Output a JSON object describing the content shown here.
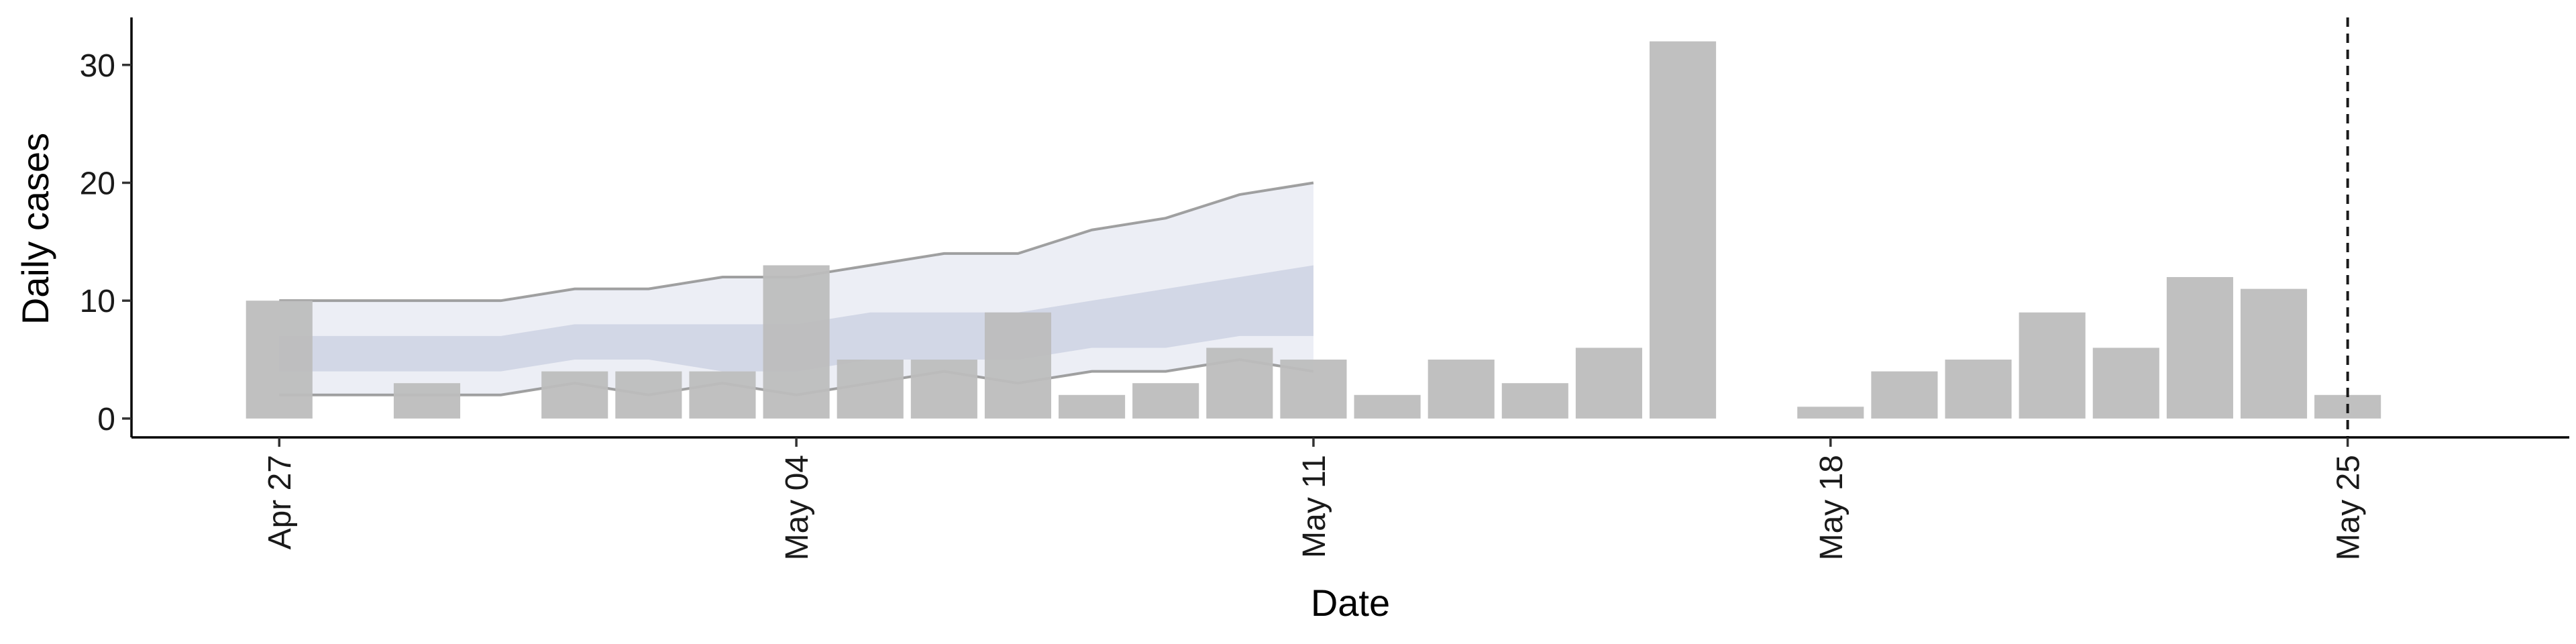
{
  "chart_data": {
    "type": "bar",
    "xlabel": "Date",
    "ylabel": "Daily cases",
    "xlim": [
      "2020-04-25",
      "2020-05-28"
    ],
    "ylim": [
      -1.6,
      33.8
    ],
    "x_ticks": [
      {
        "date": "2020-04-27",
        "label": "Apr 27"
      },
      {
        "date": "2020-05-04",
        "label": "May 04"
      },
      {
        "date": "2020-05-11",
        "label": "May 11"
      },
      {
        "date": "2020-05-18",
        "label": "May 18"
      },
      {
        "date": "2020-05-25",
        "label": "May 25"
      }
    ],
    "y_ticks": [
      0,
      10,
      20,
      30
    ],
    "grid": false,
    "daily_cases": {
      "color": "#bdbdbd",
      "points": [
        {
          "date": "2020-04-27",
          "value": 10
        },
        {
          "date": "2020-04-29",
          "value": 3
        },
        {
          "date": "2020-05-01",
          "value": 4
        },
        {
          "date": "2020-05-02",
          "value": 4
        },
        {
          "date": "2020-05-03",
          "value": 4
        },
        {
          "date": "2020-05-04",
          "value": 13
        },
        {
          "date": "2020-05-05",
          "value": 5
        },
        {
          "date": "2020-05-06",
          "value": 5
        },
        {
          "date": "2020-05-07",
          "value": 9
        },
        {
          "date": "2020-05-08",
          "value": 2
        },
        {
          "date": "2020-05-09",
          "value": 3
        },
        {
          "date": "2020-05-10",
          "value": 6
        },
        {
          "date": "2020-05-11",
          "value": 5
        },
        {
          "date": "2020-05-12",
          "value": 2
        },
        {
          "date": "2020-05-13",
          "value": 5
        },
        {
          "date": "2020-05-14",
          "value": 3
        },
        {
          "date": "2020-05-15",
          "value": 6
        },
        {
          "date": "2020-05-16",
          "value": 32
        },
        {
          "date": "2020-05-18",
          "value": 1
        },
        {
          "date": "2020-05-19",
          "value": 4
        },
        {
          "date": "2020-05-20",
          "value": 5
        },
        {
          "date": "2020-05-21",
          "value": 9
        },
        {
          "date": "2020-05-22",
          "value": 6
        },
        {
          "date": "2020-05-23",
          "value": 12
        },
        {
          "date": "2020-05-24",
          "value": 11
        },
        {
          "date": "2020-05-25",
          "value": 2
        }
      ]
    },
    "forecast": {
      "dates": [
        "2020-04-27",
        "2020-04-28",
        "2020-04-29",
        "2020-04-30",
        "2020-05-01",
        "2020-05-02",
        "2020-05-03",
        "2020-05-04",
        "2020-05-05",
        "2020-05-06",
        "2020-05-07",
        "2020-05-08",
        "2020-05-09",
        "2020-05-10",
        "2020-05-11"
      ],
      "outer_upper": [
        10,
        10,
        10,
        10,
        11,
        11,
        12,
        12,
        13,
        14,
        14,
        16,
        17,
        19,
        20
      ],
      "outer_lower": [
        2,
        2,
        2,
        2,
        3,
        2,
        3,
        2,
        3,
        4,
        3,
        4,
        4,
        5,
        4
      ],
      "inner_upper": [
        7,
        7,
        7,
        7,
        8,
        8,
        8,
        8,
        9,
        9,
        9,
        10,
        11,
        12,
        13
      ],
      "inner_lower": [
        4,
        4,
        4,
        4,
        5,
        5,
        4,
        4,
        5,
        5,
        5,
        6,
        6,
        7,
        7
      ],
      "outer_color": "#e6e8f1",
      "inner_color": "#c9cfe0",
      "line_color": "#8a8a8a"
    },
    "vline": {
      "date": "2020-05-25",
      "style": "dashed"
    }
  }
}
